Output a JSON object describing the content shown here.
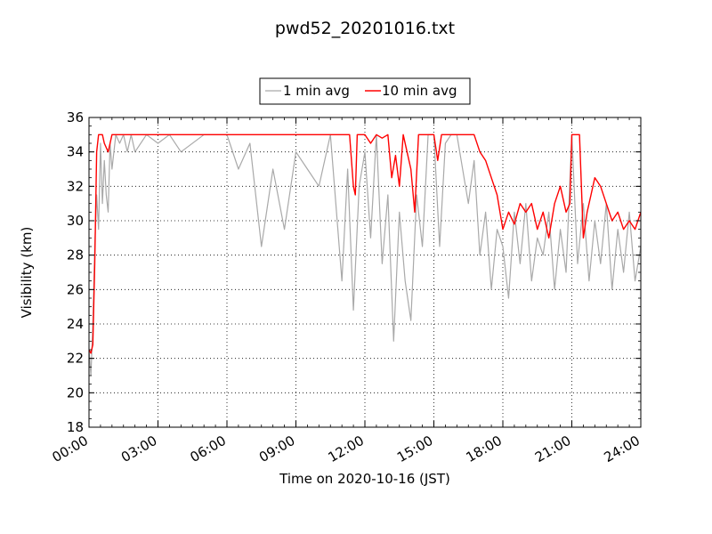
{
  "chart_data": {
    "type": "line",
    "title": "pwd52_20201016.txt",
    "xlabel": "Time on 2020-10-16 (JST)",
    "ylabel": "Visibility (km)",
    "xlim": [
      "00:00",
      "24:00"
    ],
    "ylim": [
      18,
      36
    ],
    "x_tick_labels": [
      "00:00",
      "03:00",
      "06:00",
      "09:00",
      "12:00",
      "15:00",
      "18:00",
      "21:00",
      "24:00"
    ],
    "y_tick_labels": [
      "18",
      "20",
      "22",
      "24",
      "26",
      "28",
      "30",
      "32",
      "34",
      "36"
    ],
    "grid": true,
    "legend_position": "top-center, outside plot",
    "series": [
      {
        "name": "1 min avg",
        "color": "#a9a9a9",
        "x": [
          "00:00",
          "00:05",
          "00:10",
          "00:15",
          "00:20",
          "00:25",
          "00:30",
          "00:35",
          "00:40",
          "00:45",
          "00:50",
          "00:55",
          "01:00",
          "01:10",
          "01:20",
          "01:30",
          "01:40",
          "01:50",
          "02:00",
          "02:30",
          "03:00",
          "03:30",
          "04:00",
          "05:00",
          "06:00",
          "06:30",
          "07:00",
          "07:30",
          "08:00",
          "08:30",
          "09:00",
          "09:30",
          "10:00",
          "10:30",
          "11:00",
          "11:15",
          "11:30",
          "11:45",
          "12:00",
          "12:15",
          "12:30",
          "12:45",
          "13:00",
          "13:15",
          "13:30",
          "13:45",
          "14:00",
          "14:15",
          "14:30",
          "14:45",
          "15:00",
          "15:15",
          "15:30",
          "15:45",
          "16:00",
          "16:30",
          "16:45",
          "17:00",
          "17:15",
          "17:30",
          "17:45",
          "18:00",
          "18:15",
          "18:30",
          "18:45",
          "19:00",
          "19:15",
          "19:30",
          "19:45",
          "20:00",
          "20:15",
          "20:30",
          "20:45",
          "21:00",
          "21:15",
          "21:30",
          "21:45",
          "22:00",
          "22:15",
          "22:30",
          "22:45",
          "23:00",
          "23:15",
          "23:30",
          "23:45",
          "24:00"
        ],
        "y": [
          22.5,
          21.0,
          24.0,
          28.5,
          31.5,
          29.5,
          34.5,
          31.0,
          33.5,
          31.5,
          30.5,
          34.5,
          33.0,
          35.0,
          34.5,
          35.0,
          34.0,
          35.0,
          34.0,
          35.0,
          34.5,
          35.0,
          34.0,
          35.0,
          35.0,
          33.0,
          34.5,
          28.5,
          33.0,
          29.5,
          34.0,
          33.0,
          32.0,
          35.0,
          26.5,
          33.0,
          24.8,
          32.0,
          34.0,
          29.0,
          35.0,
          27.5,
          31.5,
          23.0,
          30.5,
          26.5,
          24.2,
          31.5,
          28.5,
          35.0,
          35.0,
          28.5,
          34.5,
          35.0,
          35.0,
          31.0,
          33.5,
          28.0,
          30.5,
          26.0,
          29.5,
          28.5,
          25.5,
          30.5,
          27.5,
          31.0,
          26.5,
          29.0,
          28.0,
          30.5,
          26.0,
          29.5,
          27.0,
          35.0,
          27.5,
          31.0,
          26.5,
          30.0,
          27.5,
          31.0,
          26.0,
          29.5,
          27.0,
          30.5,
          26.5,
          28.5
        ]
      },
      {
        "name": "10 min avg",
        "color": "#ff0000",
        "x": [
          "00:00",
          "00:05",
          "00:10",
          "00:15",
          "00:20",
          "00:25",
          "00:30",
          "00:35",
          "00:40",
          "00:50",
          "01:00",
          "01:10",
          "01:20",
          "02:00",
          "04:00",
          "06:00",
          "08:00",
          "10:00",
          "11:00",
          "11:20",
          "11:25",
          "11:30",
          "11:35",
          "11:40",
          "11:45",
          "12:00",
          "12:15",
          "12:30",
          "12:45",
          "13:00",
          "13:10",
          "13:20",
          "13:30",
          "13:40",
          "13:50",
          "14:00",
          "14:10",
          "14:20",
          "14:30",
          "14:45",
          "15:00",
          "15:10",
          "15:20",
          "15:30",
          "16:00",
          "16:30",
          "16:45",
          "17:00",
          "17:15",
          "17:30",
          "17:45",
          "18:00",
          "18:15",
          "18:30",
          "18:45",
          "19:00",
          "19:15",
          "19:30",
          "19:45",
          "20:00",
          "20:15",
          "20:30",
          "20:45",
          "20:55",
          "21:00",
          "21:20",
          "21:30",
          "21:40",
          "21:50",
          "22:00",
          "22:15",
          "22:30",
          "22:45",
          "23:00",
          "23:15",
          "23:30",
          "23:45",
          "24:00"
        ],
        "y": [
          22.5,
          22.3,
          22.8,
          27.5,
          34.0,
          35.0,
          35.0,
          35.0,
          34.5,
          34.0,
          35.0,
          35.0,
          35.0,
          35.0,
          35.0,
          35.0,
          35.0,
          35.0,
          35.0,
          35.0,
          33.5,
          32.0,
          31.5,
          35.0,
          35.0,
          35.0,
          34.5,
          35.0,
          34.8,
          35.0,
          32.5,
          33.8,
          32.0,
          35.0,
          34.0,
          33.0,
          30.5,
          35.0,
          35.0,
          35.0,
          35.0,
          33.5,
          35.0,
          35.0,
          35.0,
          35.0,
          35.0,
          34.0,
          33.5,
          32.5,
          31.5,
          29.5,
          30.5,
          29.8,
          31.0,
          30.5,
          31.0,
          29.5,
          30.5,
          29.0,
          31.0,
          32.0,
          30.5,
          31.0,
          35.0,
          35.0,
          29.0,
          30.5,
          31.5,
          32.5,
          32.0,
          31.0,
          30.0,
          30.5,
          29.5,
          30.0,
          29.5,
          30.5
        ]
      }
    ]
  }
}
